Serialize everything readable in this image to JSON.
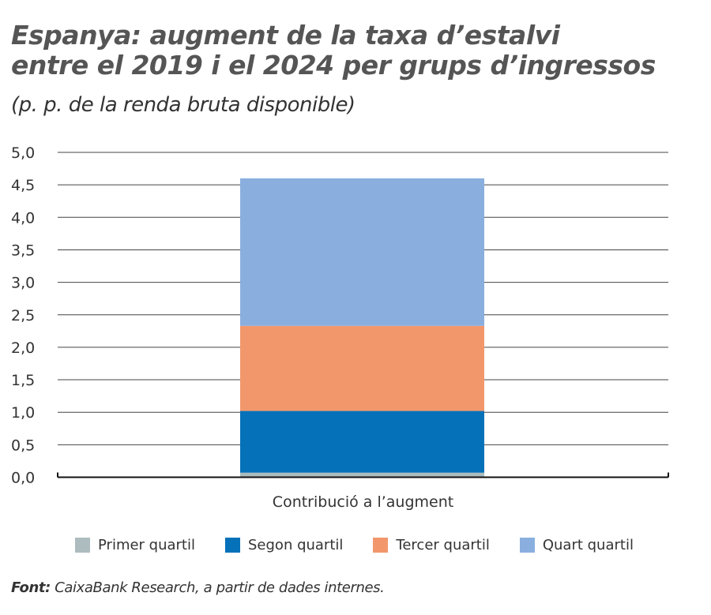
{
  "title_line1": "Espanya: augment de la taxa d’estalvi",
  "title_line2": "entre el 2019 i el 2024 per grups d’ingressos",
  "subtitle": "(p. p. de la renda bruta disponible)",
  "source_label": "Font:",
  "source_text": " CaixaBank Research, a partir de dades internes.",
  "chart_data": {
    "type": "bar",
    "stacked": true,
    "categories": [
      "Contribució a l’augment"
    ],
    "series": [
      {
        "name": "Primer quartil",
        "values": [
          0.07
        ],
        "color": "#adbcbf"
      },
      {
        "name": "Segon quartil",
        "values": [
          0.95
        ],
        "color": "#0571b9"
      },
      {
        "name": "Tercer quartil",
        "values": [
          1.31
        ],
        "color": "#f2976c"
      },
      {
        "name": "Quart quartil",
        "values": [
          2.27
        ],
        "color": "#8aafdf"
      }
    ],
    "ylim": [
      0,
      5
    ],
    "yticks": [
      "0,0",
      "0,5",
      "1,0",
      "1,5",
      "2,0",
      "2,5",
      "3,0",
      "3,5",
      "4,0",
      "4,5",
      "5,0"
    ],
    "grid": true,
    "legend": "bottom"
  }
}
